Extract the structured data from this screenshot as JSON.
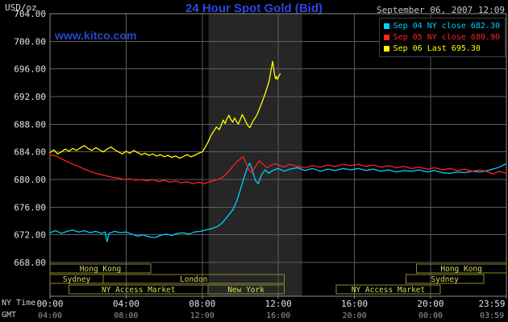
{
  "chart_data": {
    "type": "line",
    "title": "24 Hour Spot Gold (Bid)",
    "watermark": "www.kitco.com",
    "y_label": "USD/oz",
    "date_label": "September 06, 2007 12:09",
    "ylim": [
      668,
      704
    ],
    "y_ticks": [
      668,
      672,
      676,
      680,
      684,
      688,
      692,
      696,
      700,
      704
    ],
    "x_ticks": [
      {
        "hour": 0,
        "ny": "00:00",
        "gmt": "04:00"
      },
      {
        "hour": 4,
        "ny": "04:00",
        "gmt": "08:00"
      },
      {
        "hour": 8,
        "ny": "08:00",
        "gmt": "12:00"
      },
      {
        "hour": 12,
        "ny": "12:00",
        "gmt": "16:00"
      },
      {
        "hour": 16,
        "ny": "16:00",
        "gmt": "20:00"
      },
      {
        "hour": 20,
        "ny": "20:00",
        "gmt": "00:00"
      },
      {
        "hour": 23.983,
        "ny": "23:59",
        "gmt": "03:59"
      }
    ],
    "axis_row_labels": {
      "ny": "NY Time",
      "gmt": "GMT"
    },
    "legend": [
      {
        "label": "Sep 04 NY close 682.30",
        "color": "#00cfff"
      },
      {
        "label": "Sep 05 NY close 680.90",
        "color": "#ff2222"
      },
      {
        "label": "Sep 06 Last 695.30",
        "color": "#ffff00"
      }
    ],
    "highlight_band": {
      "start_hour": 8.33,
      "end_hour": 13.25
    },
    "sessions": [
      {
        "label": "Hong Kong",
        "row": 0,
        "start_hour": 0,
        "end_hour": 5.3
      },
      {
        "label": "Hong Kong",
        "row": 0,
        "start_hour": 19.25,
        "end_hour": 23.983
      },
      {
        "label": "Sydney",
        "row": 1,
        "start_hour": 0,
        "end_hour": 2.8
      },
      {
        "label": "London",
        "row": 1,
        "start_hour": 2.8,
        "end_hour": 12.3
      },
      {
        "label": "Sydney",
        "row": 1,
        "start_hour": 18.7,
        "end_hour": 22.8
      },
      {
        "label": "NY Access Market",
        "row": 2,
        "start_hour": 1.0,
        "end_hour": 8.3
      },
      {
        "label": "New York",
        "row": 2,
        "start_hour": 8.3,
        "end_hour": 12.3
      },
      {
        "label": "NY Access Market",
        "row": 2,
        "start_hour": 15.05,
        "end_hour": 20.5
      }
    ],
    "series": [
      {
        "name": "Sep 04 NY close",
        "color": "#00cfff",
        "close": 682.3,
        "points": [
          [
            0,
            672.3
          ],
          [
            0.3,
            672.6
          ],
          [
            0.6,
            672.2
          ],
          [
            0.9,
            672.5
          ],
          [
            1.2,
            672.7
          ],
          [
            1.5,
            672.4
          ],
          [
            1.8,
            672.6
          ],
          [
            2.1,
            672.3
          ],
          [
            2.4,
            672.5
          ],
          [
            2.7,
            672.2
          ],
          [
            2.9,
            672.4
          ],
          [
            3.0,
            671.0
          ],
          [
            3.1,
            672.2
          ],
          [
            3.4,
            672.5
          ],
          [
            3.7,
            672.3
          ],
          [
            4.0,
            672.4
          ],
          [
            4.3,
            672.1
          ],
          [
            4.6,
            671.8
          ],
          [
            4.9,
            672.0
          ],
          [
            5.2,
            671.7
          ],
          [
            5.5,
            671.6
          ],
          [
            5.8,
            671.9
          ],
          [
            6.1,
            672.1
          ],
          [
            6.4,
            671.9
          ],
          [
            6.7,
            672.2
          ],
          [
            7.0,
            672.3
          ],
          [
            7.3,
            672.1
          ],
          [
            7.6,
            672.4
          ],
          [
            7.9,
            672.5
          ],
          [
            8.2,
            672.7
          ],
          [
            8.5,
            672.9
          ],
          [
            8.8,
            673.2
          ],
          [
            9.0,
            673.6
          ],
          [
            9.2,
            674.2
          ],
          [
            9.4,
            674.9
          ],
          [
            9.6,
            675.6
          ],
          [
            9.8,
            676.8
          ],
          [
            10.0,
            678.5
          ],
          [
            10.2,
            680.3
          ],
          [
            10.35,
            681.6
          ],
          [
            10.5,
            682.4
          ],
          [
            10.65,
            681.2
          ],
          [
            10.8,
            679.8
          ],
          [
            10.95,
            679.4
          ],
          [
            11.1,
            680.6
          ],
          [
            11.3,
            681.4
          ],
          [
            11.5,
            680.9
          ],
          [
            11.7,
            681.3
          ],
          [
            12.0,
            681.6
          ],
          [
            12.3,
            681.2
          ],
          [
            12.6,
            681.5
          ],
          [
            13.0,
            681.7
          ],
          [
            13.4,
            681.3
          ],
          [
            13.8,
            681.6
          ],
          [
            14.2,
            681.2
          ],
          [
            14.6,
            681.5
          ],
          [
            15.0,
            681.3
          ],
          [
            15.4,
            681.6
          ],
          [
            15.8,
            681.4
          ],
          [
            16.2,
            681.6
          ],
          [
            16.6,
            681.3
          ],
          [
            17.0,
            681.5
          ],
          [
            17.4,
            681.2
          ],
          [
            17.8,
            681.4
          ],
          [
            18.2,
            681.1
          ],
          [
            18.6,
            681.3
          ],
          [
            19.0,
            681.2
          ],
          [
            19.4,
            681.4
          ],
          [
            19.8,
            681.1
          ],
          [
            20.2,
            681.3
          ],
          [
            20.6,
            681.0
          ],
          [
            21.0,
            680.9
          ],
          [
            21.4,
            681.1
          ],
          [
            21.8,
            681.0
          ],
          [
            22.2,
            681.2
          ],
          [
            22.6,
            681.1
          ],
          [
            23.0,
            681.3
          ],
          [
            23.4,
            681.6
          ],
          [
            23.7,
            681.9
          ],
          [
            23.98,
            682.3
          ]
        ]
      },
      {
        "name": "Sep 05 NY close",
        "color": "#ff2222",
        "close": 680.9,
        "points": [
          [
            0,
            683.6
          ],
          [
            0.3,
            683.4
          ],
          [
            0.6,
            683.0
          ],
          [
            0.9,
            682.6
          ],
          [
            1.2,
            682.2
          ],
          [
            1.5,
            681.9
          ],
          [
            1.8,
            681.5
          ],
          [
            2.1,
            681.2
          ],
          [
            2.4,
            680.9
          ],
          [
            2.7,
            680.7
          ],
          [
            3.0,
            680.5
          ],
          [
            3.3,
            680.3
          ],
          [
            3.6,
            680.2
          ],
          [
            3.9,
            680.0
          ],
          [
            4.2,
            680.1
          ],
          [
            4.5,
            679.9
          ],
          [
            4.8,
            680.0
          ],
          [
            5.1,
            679.8
          ],
          [
            5.4,
            680.0
          ],
          [
            5.7,
            679.7
          ],
          [
            6.0,
            679.9
          ],
          [
            6.3,
            679.6
          ],
          [
            6.6,
            679.8
          ],
          [
            6.9,
            679.5
          ],
          [
            7.2,
            679.7
          ],
          [
            7.5,
            679.4
          ],
          [
            7.8,
            679.6
          ],
          [
            8.1,
            679.4
          ],
          [
            8.4,
            679.7
          ],
          [
            8.7,
            679.9
          ],
          [
            9.0,
            680.2
          ],
          [
            9.2,
            680.6
          ],
          [
            9.4,
            681.2
          ],
          [
            9.6,
            681.9
          ],
          [
            9.8,
            682.5
          ],
          [
            10.0,
            683.0
          ],
          [
            10.15,
            683.3
          ],
          [
            10.3,
            682.4
          ],
          [
            10.45,
            681.4
          ],
          [
            10.6,
            681.0
          ],
          [
            10.8,
            681.9
          ],
          [
            11.0,
            682.7
          ],
          [
            11.2,
            682.2
          ],
          [
            11.4,
            681.7
          ],
          [
            11.6,
            682.0
          ],
          [
            11.8,
            682.3
          ],
          [
            12.0,
            682.1
          ],
          [
            12.3,
            681.8
          ],
          [
            12.6,
            682.2
          ],
          [
            13.0,
            681.9
          ],
          [
            13.4,
            681.7
          ],
          [
            13.8,
            682.0
          ],
          [
            14.2,
            681.8
          ],
          [
            14.6,
            682.1
          ],
          [
            15.0,
            681.9
          ],
          [
            15.4,
            682.2
          ],
          [
            15.8,
            682.0
          ],
          [
            16.2,
            682.2
          ],
          [
            16.6,
            681.9
          ],
          [
            17.0,
            682.1
          ],
          [
            17.4,
            681.8
          ],
          [
            17.8,
            682.0
          ],
          [
            18.2,
            681.7
          ],
          [
            18.6,
            681.9
          ],
          [
            19.0,
            681.6
          ],
          [
            19.4,
            681.8
          ],
          [
            19.8,
            681.5
          ],
          [
            20.2,
            681.7
          ],
          [
            20.6,
            681.4
          ],
          [
            21.0,
            681.6
          ],
          [
            21.4,
            681.3
          ],
          [
            21.8,
            681.5
          ],
          [
            22.2,
            681.2
          ],
          [
            22.6,
            681.4
          ],
          [
            23.0,
            681.1
          ],
          [
            23.3,
            680.8
          ],
          [
            23.6,
            681.2
          ],
          [
            23.98,
            680.9
          ]
        ]
      },
      {
        "name": "Sep 06 Last",
        "color": "#ffff00",
        "close": 695.3,
        "points": [
          [
            0,
            683.9
          ],
          [
            0.2,
            684.3
          ],
          [
            0.4,
            683.7
          ],
          [
            0.6,
            684.0
          ],
          [
            0.8,
            684.4
          ],
          [
            1.0,
            684.1
          ],
          [
            1.2,
            684.5
          ],
          [
            1.4,
            684.2
          ],
          [
            1.6,
            684.6
          ],
          [
            1.8,
            684.9
          ],
          [
            2.0,
            684.5
          ],
          [
            2.2,
            684.2
          ],
          [
            2.4,
            684.6
          ],
          [
            2.6,
            684.3
          ],
          [
            2.8,
            684.0
          ],
          [
            3.0,
            684.4
          ],
          [
            3.2,
            684.7
          ],
          [
            3.4,
            684.3
          ],
          [
            3.6,
            684.0
          ],
          [
            3.8,
            683.7
          ],
          [
            4.0,
            684.1
          ],
          [
            4.2,
            683.8
          ],
          [
            4.4,
            684.2
          ],
          [
            4.6,
            683.9
          ],
          [
            4.8,
            683.6
          ],
          [
            5.0,
            683.8
          ],
          [
            5.2,
            683.5
          ],
          [
            5.4,
            683.7
          ],
          [
            5.6,
            683.4
          ],
          [
            5.8,
            683.6
          ],
          [
            6.0,
            683.3
          ],
          [
            6.2,
            683.5
          ],
          [
            6.4,
            683.2
          ],
          [
            6.6,
            683.4
          ],
          [
            6.8,
            683.1
          ],
          [
            7.0,
            683.3
          ],
          [
            7.2,
            683.6
          ],
          [
            7.4,
            683.3
          ],
          [
            7.6,
            683.5
          ],
          [
            7.8,
            683.8
          ],
          [
            8.0,
            684.0
          ],
          [
            8.15,
            684.6
          ],
          [
            8.3,
            685.4
          ],
          [
            8.45,
            686.3
          ],
          [
            8.6,
            687.0
          ],
          [
            8.75,
            687.6
          ],
          [
            8.9,
            687.2
          ],
          [
            9.0,
            687.9
          ],
          [
            9.1,
            688.6
          ],
          [
            9.2,
            688.1
          ],
          [
            9.3,
            688.8
          ],
          [
            9.4,
            689.3
          ],
          [
            9.5,
            688.7
          ],
          [
            9.6,
            688.3
          ],
          [
            9.7,
            688.9
          ],
          [
            9.8,
            688.4
          ],
          [
            9.9,
            688.0
          ],
          [
            10.0,
            688.7
          ],
          [
            10.1,
            689.4
          ],
          [
            10.2,
            688.9
          ],
          [
            10.3,
            688.3
          ],
          [
            10.4,
            687.8
          ],
          [
            10.5,
            687.5
          ],
          [
            10.6,
            688.1
          ],
          [
            10.7,
            688.6
          ],
          [
            10.8,
            689.0
          ],
          [
            10.9,
            689.5
          ],
          [
            11.0,
            690.2
          ],
          [
            11.1,
            690.9
          ],
          [
            11.2,
            691.6
          ],
          [
            11.3,
            692.4
          ],
          [
            11.4,
            693.2
          ],
          [
            11.5,
            694.1
          ],
          [
            11.55,
            694.8
          ],
          [
            11.6,
            695.6
          ],
          [
            11.65,
            696.3
          ],
          [
            11.7,
            697.1
          ],
          [
            11.75,
            696.2
          ],
          [
            11.8,
            695.2
          ],
          [
            11.85,
            694.6
          ],
          [
            11.9,
            694.9
          ],
          [
            11.95,
            694.5
          ],
          [
            12.0,
            694.8
          ],
          [
            12.05,
            695.1
          ],
          [
            12.1,
            695.3
          ]
        ]
      }
    ]
  }
}
